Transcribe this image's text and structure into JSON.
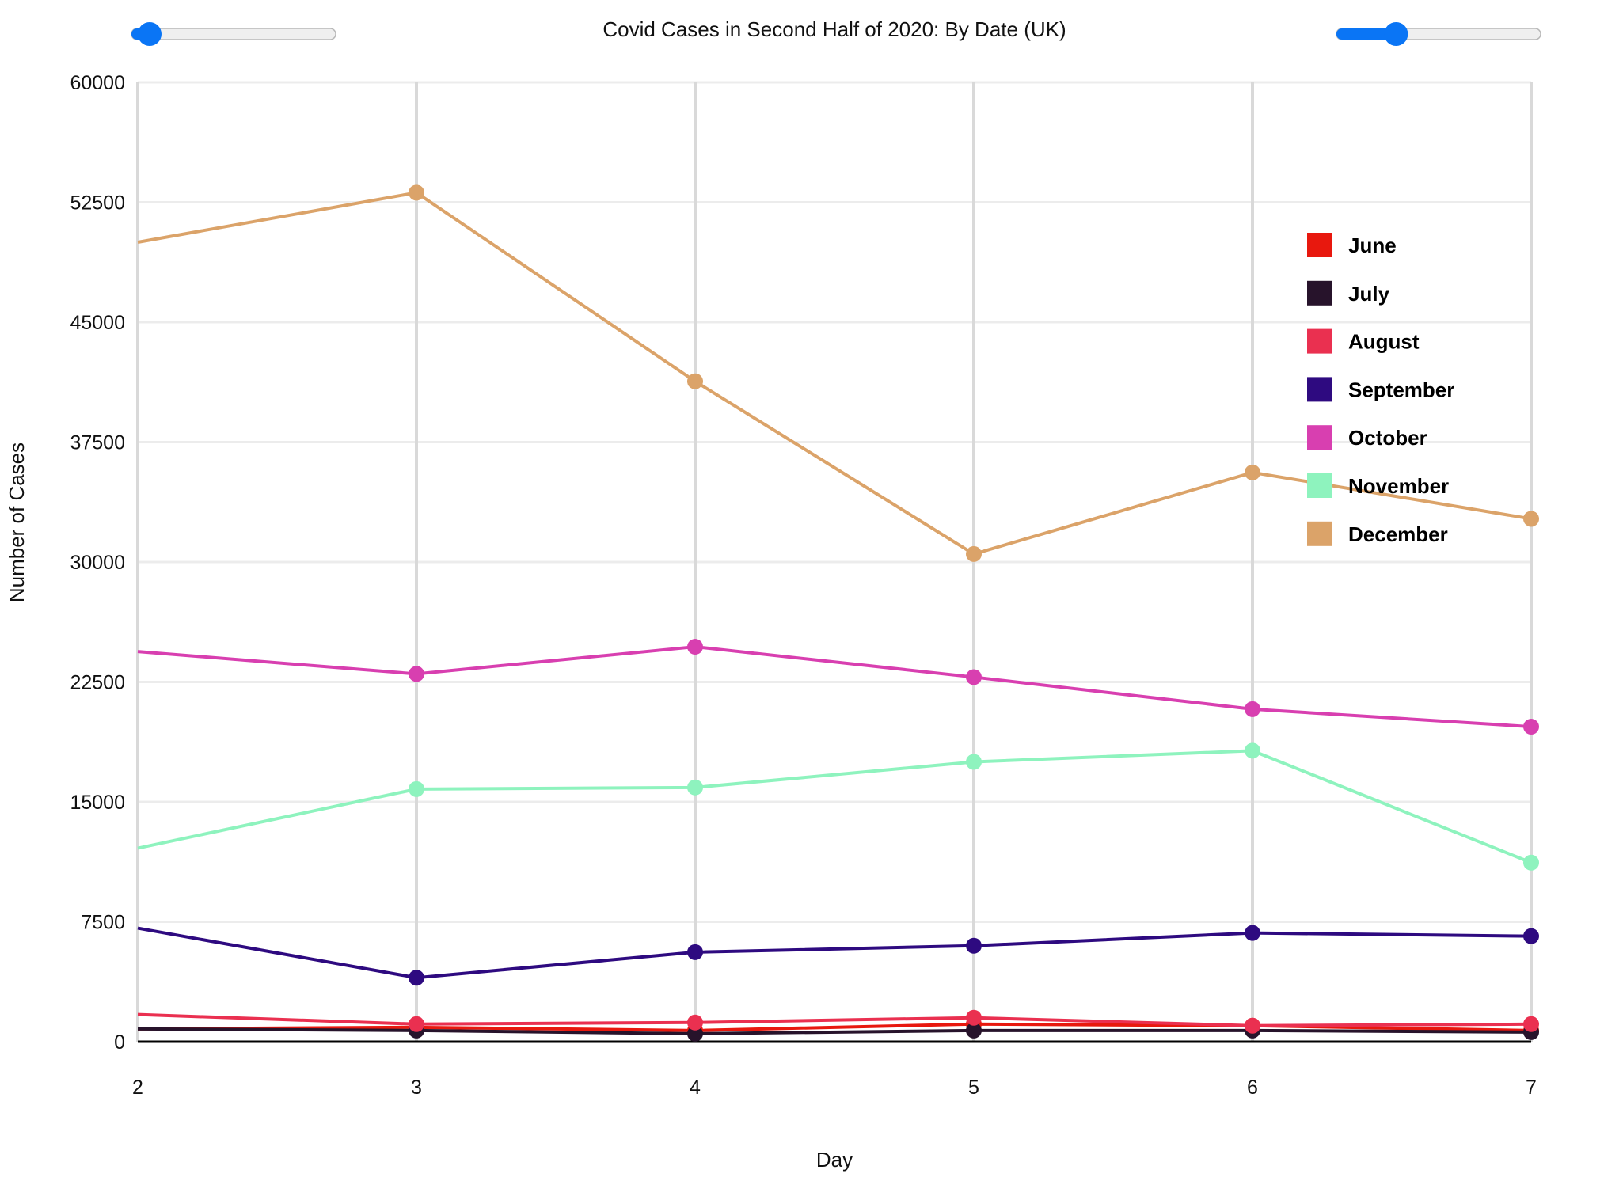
{
  "controls": {
    "slider_left": {
      "value": 0
    },
    "slider_right": {
      "value": 0.2
    }
  },
  "chart_data": {
    "type": "line",
    "title": "Covid Cases in Second Half of 2020: By Date (UK)",
    "xlabel": "Day",
    "ylabel": "Number of Cases",
    "x": [
      2,
      3,
      4,
      5,
      6,
      7
    ],
    "x_tick_labels": [
      "2",
      "3",
      "4",
      "5",
      "6",
      "7"
    ],
    "y_ticks": [
      0,
      7500,
      15000,
      22500,
      30000,
      37500,
      45000,
      52500,
      60000
    ],
    "y_tick_labels": [
      "0",
      "7500",
      "15000",
      "22500",
      "30000",
      "37500",
      "45000",
      "52500",
      "60000"
    ],
    "xlim": [
      2,
      7
    ],
    "ylim": [
      0,
      60000
    ],
    "grid": {
      "vertical": true,
      "horizontal": true
    },
    "legend_position": "top-right",
    "series": [
      {
        "name": "June",
        "color": "#e8180e",
        "values": [
          800,
          900,
          700,
          1100,
          1000,
          700
        ]
      },
      {
        "name": "July",
        "color": "#27132b",
        "values": [
          800,
          700,
          500,
          700,
          700,
          600
        ]
      },
      {
        "name": "August",
        "color": "#ea3050",
        "values": [
          1700,
          1100,
          1200,
          1500,
          1000,
          1100
        ]
      },
      {
        "name": "September",
        "color": "#2e0a80",
        "values": [
          7100,
          4000,
          5600,
          6000,
          6800,
          6600
        ]
      },
      {
        "name": "October",
        "color": "#d83fb0",
        "values": [
          24400,
          23000,
          24700,
          22800,
          20800,
          19700
        ]
      },
      {
        "name": "November",
        "color": "#8ef3be",
        "values": [
          12100,
          15800,
          15900,
          17500,
          18200,
          11200
        ]
      },
      {
        "name": "December",
        "color": "#dba369",
        "values": [
          50000,
          53100,
          41300,
          30500,
          35600,
          32700
        ]
      }
    ]
  }
}
